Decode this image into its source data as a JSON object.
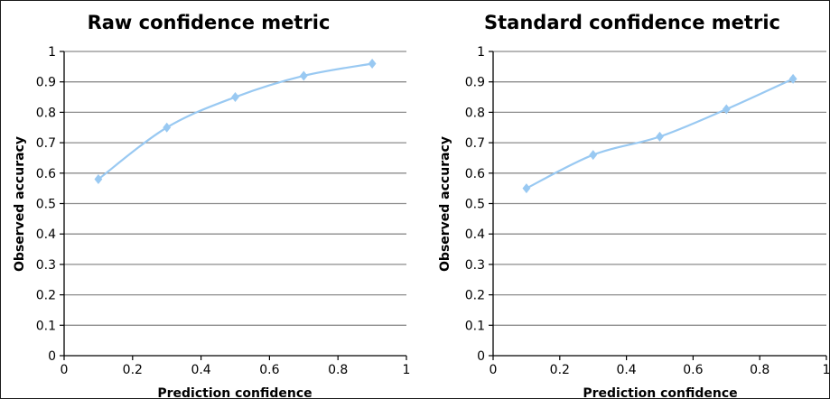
{
  "style": {
    "series_color": "#99c9f2",
    "gridline_color": "#8c8c8c",
    "axis_color": "#000000"
  },
  "chart_data": [
    {
      "type": "line",
      "title": "Raw confidence metric",
      "xlabel": "Prediction confidence",
      "ylabel": "Observed accuracy",
      "xlim": [
        0,
        1
      ],
      "ylim": [
        0,
        1
      ],
      "xticks": [
        0,
        0.2,
        0.4,
        0.6,
        0.8,
        1
      ],
      "xtick_labels": [
        "0",
        "0.2",
        "0.4",
        "0.6",
        "0.8",
        "1"
      ],
      "yticks": [
        0,
        0.1,
        0.2,
        0.3,
        0.4,
        0.5,
        0.6,
        0.7,
        0.8,
        0.9,
        1
      ],
      "ytick_labels": [
        "0",
        "0.1",
        "0.2",
        "0.3",
        "0.4",
        "0.5",
        "0.6",
        "0.7",
        "0.8",
        "0.9",
        "1"
      ],
      "grid": "horizontal",
      "legend": "none",
      "marker": "diamond",
      "smooth": true,
      "series": [
        {
          "x": [
            0.1,
            0.3,
            0.5,
            0.7,
            0.9
          ],
          "y": [
            0.58,
            0.75,
            0.85,
            0.92,
            0.96
          ]
        }
      ]
    },
    {
      "type": "line",
      "title": "Standard confidence metric",
      "xlabel": "Prediction confidence",
      "ylabel": "Observed accuracy",
      "xlim": [
        0,
        1
      ],
      "ylim": [
        0,
        1
      ],
      "xticks": [
        0,
        0.2,
        0.4,
        0.6,
        0.8,
        1
      ],
      "xtick_labels": [
        "0",
        "0.2",
        "0.4",
        "0.6",
        "0.8",
        "1"
      ],
      "yticks": [
        0,
        0.1,
        0.2,
        0.3,
        0.4,
        0.5,
        0.6,
        0.7,
        0.8,
        0.9,
        1
      ],
      "ytick_labels": [
        "0",
        "0.1",
        "0.2",
        "0.3",
        "0.4",
        "0.5",
        "0.6",
        "0.7",
        "0.8",
        "0.9",
        "1"
      ],
      "grid": "horizontal",
      "legend": "none",
      "marker": "diamond",
      "smooth": true,
      "series": [
        {
          "x": [
            0.1,
            0.3,
            0.5,
            0.7,
            0.9
          ],
          "y": [
            0.55,
            0.66,
            0.72,
            0.81,
            0.91
          ]
        }
      ]
    }
  ]
}
